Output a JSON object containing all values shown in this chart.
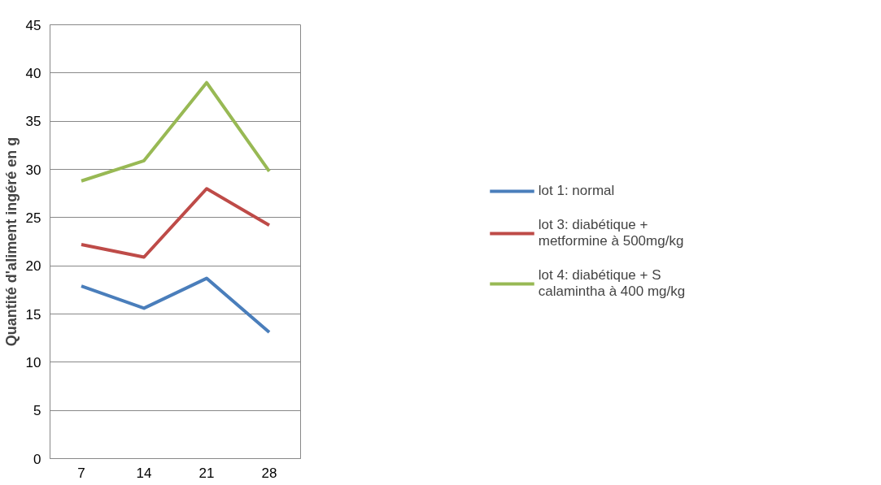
{
  "chart_data": {
    "type": "line",
    "ylabel": "Quantité d'aliment ingéré en g",
    "categories": [
      "7",
      "14",
      "21",
      "28"
    ],
    "ylim": [
      0,
      45
    ],
    "yticks": [
      0,
      5,
      10,
      15,
      20,
      25,
      30,
      35,
      40,
      45
    ],
    "grid": "y",
    "legend": "right",
    "marker": "none",
    "line_style": "solid",
    "series": [
      {
        "name": "lot 1: normal",
        "color": "#4a7ebb",
        "values": [
          17.9,
          15.6,
          18.7,
          13.1
        ]
      },
      {
        "name": "lot 3: diabétique + metformine à 500mg/kg",
        "color": "#be4b48",
        "values": [
          22.2,
          20.9,
          28.0,
          24.2
        ]
      },
      {
        "name": "lot 4: diabétique + S calamintha à 400 mg/kg",
        "color": "#98b954",
        "values": [
          28.8,
          30.9,
          39.0,
          29.8
        ]
      }
    ]
  }
}
